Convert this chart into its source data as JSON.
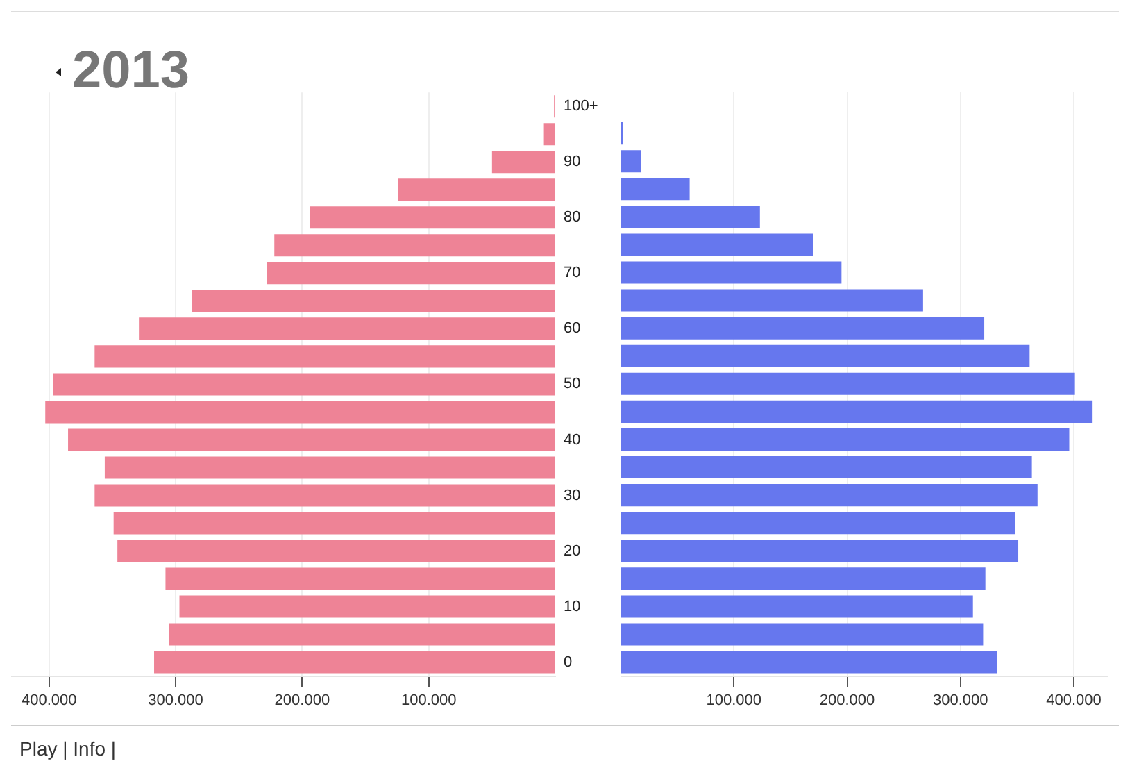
{
  "chart_data": [
    {
      "type": "bar",
      "orientation": "horizontal",
      "title": "2013",
      "annotations": [
        "Play | Info |"
      ],
      "categories": [
        "100+",
        null,
        "90",
        null,
        "80",
        null,
        "70",
        null,
        "60",
        null,
        "50",
        null,
        "40",
        null,
        "30",
        null,
        "20",
        null,
        "10",
        null,
        "0"
      ],
      "series": [
        {
          "color": "#ee8396",
          "values": [
            1000,
            9000,
            50000,
            124000,
            194000,
            222000,
            228000,
            287000,
            329000,
            364000,
            397000,
            403000,
            385000,
            356000,
            364000,
            349000,
            346000,
            308000,
            297000,
            305000,
            317000
          ]
        }
      ],
      "xlim": [
        430000,
        0
      ],
      "xticks": [
        {
          "value": 400000,
          "label": "400.000"
        },
        {
          "value": 300000,
          "label": "300.000"
        },
        {
          "value": 200000,
          "label": "200.000"
        },
        {
          "value": 100000,
          "label": "100.000"
        }
      ],
      "grid": "x"
    },
    {
      "type": "bar",
      "orientation": "horizontal",
      "categories": [
        null,
        null,
        null,
        null,
        null,
        null,
        null,
        null,
        null,
        null,
        null,
        null,
        null,
        null,
        null,
        null,
        null,
        null,
        null,
        null,
        null
      ],
      "series": [
        {
          "color": "#6677ee",
          "values": [
            0,
            2000,
            18000,
            61000,
            123000,
            170000,
            195000,
            267000,
            321000,
            361000,
            401000,
            416000,
            396000,
            363000,
            368000,
            348000,
            351000,
            322000,
            311000,
            320000,
            332000
          ]
        }
      ],
      "xlim": [
        0,
        430000
      ],
      "xticks": [
        {
          "value": 100000,
          "label": "100.000"
        },
        {
          "value": 200000,
          "label": "200.000"
        },
        {
          "value": 300000,
          "label": "300.000"
        },
        {
          "value": 400000,
          "label": "400.000"
        }
      ],
      "grid": "x",
      "tick_labels": "x"
    }
  ]
}
